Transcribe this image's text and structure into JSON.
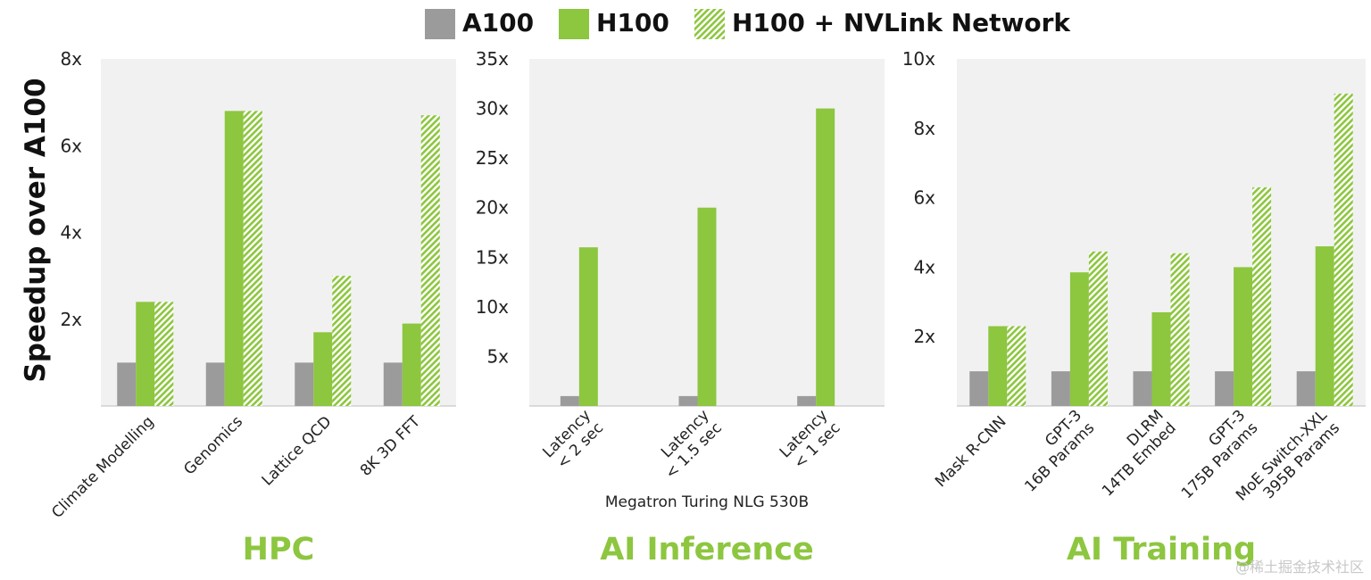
{
  "legend": {
    "items": [
      {
        "label": "A100",
        "color": "#9b9b9b",
        "pattern": "solid"
      },
      {
        "label": "H100",
        "color": "#8dc63f",
        "pattern": "solid"
      },
      {
        "label": "H100 + NVLink Network",
        "color": "#8dc63f",
        "pattern": "hatched"
      }
    ]
  },
  "y_axis_title": "Speedup over A100",
  "watermark": "@稀土掘金技术社区",
  "chart_data": [
    {
      "type": "bar",
      "title": "HPC",
      "categories": [
        "Climate Modelling",
        "Genomics",
        "Lattice QCD",
        "8K 3D FFT"
      ],
      "series": [
        {
          "name": "A100",
          "values": [
            1,
            1,
            1,
            1
          ]
        },
        {
          "name": "H100",
          "values": [
            2.4,
            6.8,
            1.7,
            1.9
          ]
        },
        {
          "name": "H100 + NVLink Network",
          "values": [
            2.4,
            6.8,
            3.0,
            6.7
          ]
        }
      ],
      "ylim": [
        0,
        8
      ],
      "yticks": [
        2,
        4,
        6,
        8
      ],
      "ytick_labels": [
        "2x",
        "4x",
        "6x",
        "8x"
      ],
      "subtitle": "",
      "grid": false
    },
    {
      "type": "bar",
      "title": "AI Inference",
      "categories": [
        "Latency\n< 2 sec",
        "Latency\n< 1.5 sec",
        "Latency\n< 1 sec"
      ],
      "series": [
        {
          "name": "A100",
          "values": [
            1,
            1,
            1
          ]
        },
        {
          "name": "H100",
          "values": [
            16,
            20,
            30
          ]
        }
      ],
      "ylim": [
        0,
        35
      ],
      "yticks": [
        5,
        10,
        15,
        20,
        25,
        30,
        35
      ],
      "ytick_labels": [
        "5x",
        "10x",
        "15x",
        "20x",
        "25x",
        "30x",
        "35x"
      ],
      "subtitle": "Megatron Turing NLG 530B",
      "grid": false
    },
    {
      "type": "bar",
      "title": "AI Training",
      "categories": [
        "Mask R-CNN",
        "GPT-3\n16B Params",
        "DLRM\n14TB Embed",
        "GPT-3\n175B Params",
        "MoE Switch-XXL\n395B Params"
      ],
      "series": [
        {
          "name": "A100",
          "values": [
            1,
            1,
            1,
            1,
            1
          ]
        },
        {
          "name": "H100",
          "values": [
            2.3,
            3.85,
            2.7,
            4.0,
            4.6
          ]
        },
        {
          "name": "H100 + NVLink Network",
          "values": [
            2.3,
            4.45,
            4.4,
            6.3,
            9.0
          ]
        }
      ],
      "ylim": [
        0,
        10
      ],
      "yticks": [
        2,
        4,
        6,
        8,
        10
      ],
      "ytick_labels": [
        "2x",
        "4x",
        "6x",
        "8x",
        "10x"
      ],
      "subtitle": "",
      "grid": false
    }
  ]
}
